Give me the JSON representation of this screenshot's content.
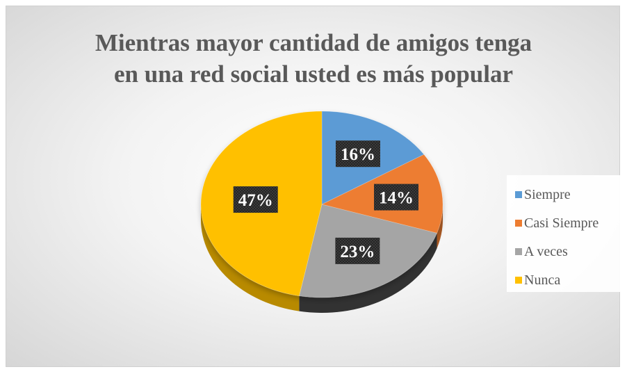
{
  "chart_data": {
    "type": "pie",
    "title": "Mientras mayor cantidad de amigos tenga en una red social usted es más popular",
    "title_lines": [
      "Mientras mayor cantidad de amigos tenga",
      "en una red social usted es más popular"
    ],
    "categories": [
      "Siempre",
      "Casi Siempre",
      "A veces",
      "Nunca"
    ],
    "values": [
      16,
      14,
      23,
      47
    ],
    "labels": [
      "16%",
      "14%",
      "23%",
      "47%"
    ],
    "colors": [
      "#5B9BD5",
      "#ED7D31",
      "#A5A5A5",
      "#FFC000"
    ],
    "legend_position": "right",
    "style": "3d-pie"
  }
}
